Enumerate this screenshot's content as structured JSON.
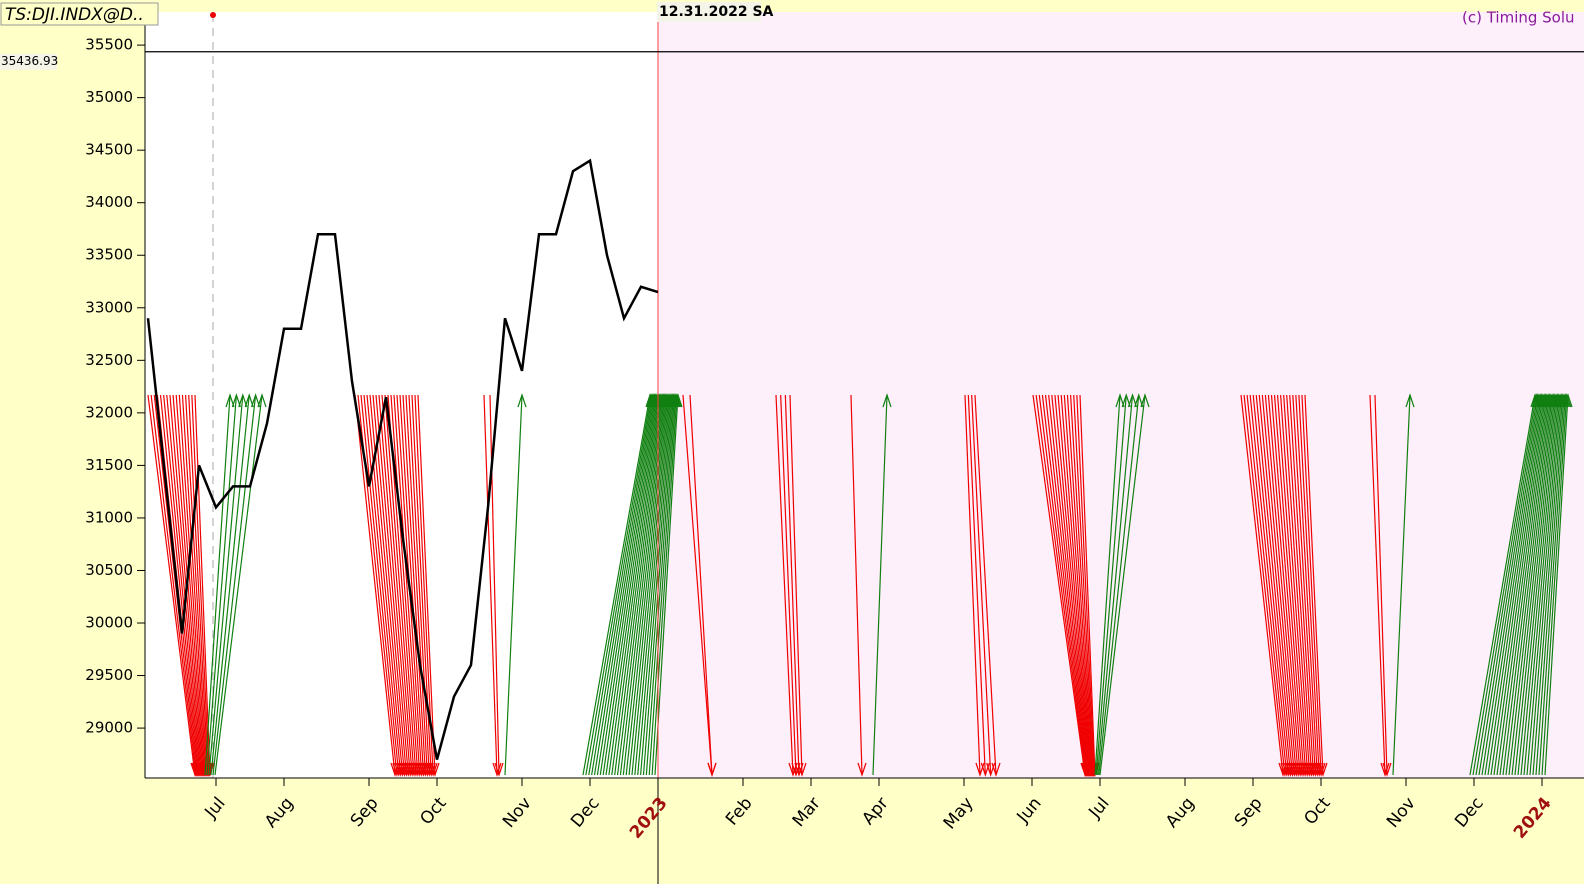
{
  "symbol_label": "TS:DJI.INDX@D..",
  "date_label": "12.31.2022 SA",
  "copyright": "(c) Timing Solu",
  "chart_data": {
    "type": "line",
    "color": "#000000",
    "price_line": {
      "value": 35436.93,
      "label": "35436.93"
    },
    "categories": [
      null,
      null,
      null,
      null,
      "Jul",
      null,
      null,
      null,
      "Aug",
      null,
      null,
      null,
      null,
      "Sep",
      null,
      null,
      null,
      "Oct",
      null,
      null,
      null,
      null,
      "Nov",
      null,
      null,
      null,
      "Dec",
      null,
      null,
      null,
      "2023",
      null,
      null,
      null,
      null,
      "Feb",
      null,
      null,
      null,
      "Mar",
      null,
      null,
      null,
      "Apr",
      null,
      null,
      null,
      null,
      "May",
      null,
      null,
      null,
      "Jun",
      null,
      null,
      null,
      "Jul",
      null,
      null,
      null,
      null,
      "Aug",
      null,
      null,
      null,
      "Sep",
      null,
      null,
      null,
      "Oct",
      null,
      null,
      null,
      null,
      "Nov",
      null,
      null,
      null,
      "Dec",
      null,
      null,
      null,
      "2024",
      null
    ],
    "values": [
      32900,
      31400,
      29900,
      31500,
      31100,
      31300,
      31300,
      31900,
      32800,
      32800,
      33700,
      33700,
      32300,
      31300,
      32150,
      30800,
      29600,
      28700,
      29300,
      29600,
      31100,
      32900,
      32400,
      33700,
      33700,
      34300,
      34400,
      33500,
      32900,
      33200,
      33150,
      null,
      null,
      null,
      null,
      null,
      null,
      null,
      null,
      null,
      null,
      null,
      null,
      null,
      null,
      null,
      null,
      null,
      null,
      null,
      null,
      null,
      null,
      null,
      null,
      null,
      null,
      null,
      null,
      null,
      null,
      null,
      null,
      null,
      null,
      null,
      null,
      null,
      null,
      null,
      null,
      null,
      null,
      null,
      null,
      null,
      null,
      null,
      null,
      null,
      null,
      null,
      null,
      null
    ],
    "ylim": [
      28525,
      35815
    ],
    "yticks": [
      29000,
      29500,
      30000,
      30500,
      31000,
      31500,
      32000,
      32500,
      33000,
      33500,
      34000,
      34500,
      35000,
      35500
    ]
  }
}
